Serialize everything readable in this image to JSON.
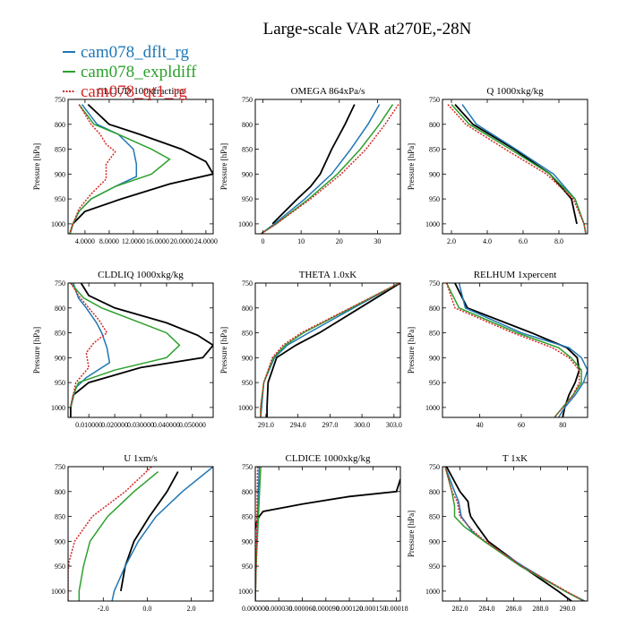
{
  "title": "Large-scale VAR at270E,-28N",
  "legend": [
    {
      "name": "cam078_dflt_rg",
      "color": "#1f77b4",
      "dash": false
    },
    {
      "name": "cam078_expldiff",
      "color": "#2ca02c",
      "dash": false
    },
    {
      "name": "cam078_qt1_rg",
      "color": "#d62728",
      "dash": true
    }
  ],
  "series_styles": [
    {
      "color": "#000000",
      "dash": false
    },
    {
      "color": "#1f77b4",
      "dash": false
    },
    {
      "color": "#2ca02c",
      "dash": false
    },
    {
      "color": "#d62728",
      "dash": true
    }
  ],
  "chart_data": [
    {
      "type": "line",
      "title": "CLOUD 100xfraction",
      "ylabel": "Pressure [hPa]",
      "xlim": [
        1.2,
        25.2
      ],
      "ylim": [
        1020,
        750
      ],
      "xticks": [
        4,
        8,
        12,
        16,
        20,
        24
      ],
      "xtick_labels": [
        "4.0000",
        "8.0000",
        "12.0000",
        "16.0000",
        "20.0000",
        "24.0000"
      ],
      "yticks": [
        750,
        800,
        850,
        900,
        950,
        1000
      ],
      "series": [
        {
          "p": [
            760,
            800,
            820,
            850,
            875,
            900,
            920,
            950,
            975,
            1000,
            1020
          ],
          "x": [
            4.5,
            8,
            13,
            20,
            24,
            25.2,
            18,
            10,
            4,
            2,
            1.5
          ]
        },
        {
          "p": [
            760,
            800,
            820,
            850,
            880,
            905,
            925,
            950,
            975,
            1000,
            1020
          ],
          "x": [
            3.5,
            6,
            9.5,
            12,
            12.5,
            12.5,
            9,
            5,
            3,
            2,
            1.5
          ]
        },
        {
          "p": [
            760,
            800,
            820,
            850,
            870,
            900,
            925,
            950,
            975,
            1000,
            1020
          ],
          "x": [
            3,
            5.5,
            9.5,
            15,
            18,
            15,
            9,
            5,
            3,
            2,
            1.5
          ]
        },
        {
          "p": [
            760,
            800,
            820,
            840,
            855,
            880,
            910,
            940,
            970,
            1000,
            1020
          ],
          "x": [
            3,
            5,
            6.5,
            7.5,
            9,
            7.5,
            7.5,
            5,
            3,
            2,
            1.5
          ]
        }
      ]
    },
    {
      "type": "line",
      "title": "OMEGA  864xPa/s",
      "ylabel": "Pressure [hPa]",
      "xlim": [
        -2,
        36
      ],
      "ylim": [
        1020,
        750
      ],
      "xticks": [
        0,
        10,
        20,
        30
      ],
      "xtick_labels": [
        "0",
        "10",
        "20",
        "30"
      ],
      "yticks": [
        750,
        800,
        850,
        900,
        950,
        1000
      ],
      "series": [
        {
          "p": [
            760,
            800,
            850,
            900,
            925,
            950,
            1000
          ],
          "x": [
            24,
            21.5,
            18,
            15,
            12.5,
            9,
            2.5
          ]
        },
        {
          "p": [
            760,
            800,
            850,
            900,
            950,
            1000,
            1020
          ],
          "x": [
            30.5,
            27.5,
            23,
            18,
            11,
            3,
            -0.5
          ]
        },
        {
          "p": [
            760,
            800,
            850,
            900,
            950,
            1000,
            1020
          ],
          "x": [
            34,
            30.5,
            25.5,
            19.5,
            12,
            3.5,
            -0.5
          ]
        },
        {
          "p": [
            760,
            800,
            850,
            900,
            950,
            1000,
            1020
          ],
          "x": [
            35.5,
            32,
            27,
            20.5,
            12.5,
            3.5,
            -0.5
          ]
        }
      ]
    },
    {
      "type": "line",
      "title": "Q  1000xkg/kg",
      "ylabel": "Pressure [hPa]",
      "xlim": [
        1.5,
        9.6
      ],
      "ylim": [
        1020,
        750
      ],
      "xticks": [
        2,
        4,
        6,
        8
      ],
      "xtick_labels": [
        "2.0",
        "4.0",
        "6.0",
        "8.0"
      ],
      "yticks": [
        750,
        800,
        850,
        900,
        950,
        1000
      ],
      "series": [
        {
          "p": [
            760,
            800,
            850,
            900,
            950,
            1000
          ],
          "x": [
            2.2,
            3.2,
            5.5,
            7.5,
            8.7,
            9.0
          ]
        },
        {
          "p": [
            760,
            800,
            850,
            900,
            950,
            1000,
            1020
          ],
          "x": [
            2.6,
            3.4,
            5.6,
            7.7,
            8.9,
            9.4,
            9.5
          ]
        },
        {
          "p": [
            760,
            800,
            850,
            900,
            950,
            1000,
            1020
          ],
          "x": [
            2.0,
            3.0,
            5.3,
            7.5,
            8.9,
            9.4,
            9.5
          ]
        },
        {
          "p": [
            760,
            800,
            850,
            900,
            950,
            1000,
            1020
          ],
          "x": [
            1.8,
            2.8,
            5.0,
            7.3,
            8.8,
            9.4,
            9.5
          ]
        }
      ]
    },
    {
      "type": "line",
      "title": "CLDLIQ  1000xkg/kg",
      "ylabel": "Pressure [hPa]",
      "xlim": [
        0.002,
        0.058
      ],
      "ylim": [
        1020,
        750
      ],
      "xticks": [
        0.01,
        0.02,
        0.03,
        0.04,
        0.05
      ],
      "xtick_labels": [
        "0.010000",
        "0.020000",
        "0.030000",
        "0.040000",
        "0.050000"
      ],
      "yticks": [
        750,
        800,
        850,
        900,
        950,
        1000
      ],
      "series": [
        {
          "p": [
            750,
            775,
            800,
            830,
            855,
            875,
            900,
            920,
            950,
            975,
            1000,
            1020
          ],
          "x": [
            0.007,
            0.01,
            0.02,
            0.04,
            0.052,
            0.058,
            0.054,
            0.03,
            0.01,
            0.004,
            0.003,
            0.003
          ]
        },
        {
          "p": [
            750,
            780,
            800,
            830,
            850,
            880,
            910,
            940,
            960,
            980,
            1000
          ],
          "x": [
            0.004,
            0.006,
            0.009,
            0.013,
            0.015,
            0.017,
            0.018,
            0.009,
            0.005,
            0.004,
            0.003
          ]
        },
        {
          "p": [
            750,
            780,
            800,
            830,
            850,
            875,
            900,
            925,
            950,
            975,
            1000
          ],
          "x": [
            0.003,
            0.008,
            0.015,
            0.03,
            0.04,
            0.045,
            0.04,
            0.02,
            0.006,
            0.004,
            0.003
          ]
        },
        {
          "p": [
            750,
            775,
            800,
            825,
            850,
            870,
            890,
            920,
            950,
            975,
            1000
          ],
          "x": [
            0.003,
            0.006,
            0.01,
            0.014,
            0.017,
            0.012,
            0.009,
            0.01,
            0.005,
            0.004,
            0.003
          ]
        }
      ]
    },
    {
      "type": "line",
      "title": "THETA  1.0xK",
      "ylabel": "Pressure [hPa]",
      "xlim": [
        290,
        303.6
      ],
      "ylim": [
        1020,
        750
      ],
      "xticks": [
        291,
        294,
        297,
        300,
        303
      ],
      "xtick_labels": [
        "291.0",
        "294.0",
        "297.0",
        "300.0",
        "303.0"
      ],
      "yticks": [
        750,
        800,
        850,
        900,
        950,
        1000
      ],
      "series": [
        {
          "p": [
            750,
            800,
            850,
            875,
            900,
            950,
            1000,
            1020
          ],
          "x": [
            303.6,
            299.8,
            296.0,
            293.8,
            292.0,
            291.2,
            291.1,
            291.1
          ]
        },
        {
          "p": [
            750,
            800,
            850,
            875,
            900,
            950,
            1000,
            1020
          ],
          "x": [
            303.5,
            299.2,
            295.0,
            293.0,
            291.8,
            290.8,
            290.6,
            290.5
          ]
        },
        {
          "p": [
            750,
            800,
            850,
            875,
            900,
            950,
            1000,
            1020
          ],
          "x": [
            303.5,
            299.0,
            294.5,
            292.8,
            291.7,
            290.8,
            290.5,
            290.5
          ]
        },
        {
          "p": [
            750,
            800,
            850,
            875,
            900,
            950,
            1000,
            1020
          ],
          "x": [
            303.5,
            298.9,
            294.3,
            292.6,
            291.6,
            290.8,
            290.5,
            290.5
          ]
        }
      ]
    },
    {
      "type": "line",
      "title": "RELHUM  1xpercent",
      "ylabel": "Pressure [hPa]",
      "xlim": [
        22,
        92
      ],
      "ylim": [
        1020,
        750
      ],
      "xticks": [
        40,
        60,
        80
      ],
      "xtick_labels": [
        "40",
        "60",
        "80"
      ],
      "yticks": [
        750,
        800,
        850,
        900,
        950,
        1000
      ],
      "series": [
        {
          "p": [
            750,
            800,
            850,
            880,
            900,
            925,
            950,
            975,
            1000,
            1020
          ],
          "x": [
            28,
            34,
            65,
            82,
            87,
            88,
            86,
            83,
            81,
            80
          ]
        },
        {
          "p": [
            750,
            800,
            850,
            880,
            900,
            925,
            950,
            975,
            1000,
            1020
          ],
          "x": [
            30,
            33,
            60,
            83,
            89,
            92,
            90,
            86,
            81,
            78
          ]
        },
        {
          "p": [
            750,
            800,
            850,
            880,
            900,
            925,
            950,
            975,
            1000,
            1020
          ],
          "x": [
            24,
            30,
            58,
            78,
            84,
            89,
            89,
            85,
            80,
            76
          ]
        },
        {
          "p": [
            750,
            800,
            850,
            880,
            900,
            925,
            950,
            975,
            1000,
            1020
          ],
          "x": [
            24,
            28,
            56,
            75,
            83,
            88,
            88,
            85,
            80,
            76
          ]
        }
      ]
    },
    {
      "type": "line",
      "title": "U  1xm/s",
      "ylabel": "",
      "xlim": [
        -3.6,
        3.0
      ],
      "ylim": [
        1020,
        750
      ],
      "xticks": [
        -2,
        0,
        2
      ],
      "xtick_labels": [
        "-2.0",
        "0.0",
        "2.0"
      ],
      "yticks": [
        750,
        800,
        850,
        900,
        950,
        1000
      ],
      "series": [
        {
          "p": [
            760,
            800,
            850,
            900,
            950,
            1000
          ],
          "x": [
            1.4,
            0.9,
            0.1,
            -0.6,
            -1.0,
            -1.2
          ]
        },
        {
          "p": [
            750,
            800,
            850,
            900,
            950,
            1000,
            1020
          ],
          "x": [
            3.0,
            1.6,
            0.4,
            -0.4,
            -1.0,
            -1.5,
            -1.6
          ]
        },
        {
          "p": [
            760,
            800,
            850,
            900,
            950,
            1000,
            1020
          ],
          "x": [
            0.5,
            -0.6,
            -1.8,
            -2.6,
            -2.9,
            -3.1,
            -3.1
          ]
        },
        {
          "p": [
            750,
            800,
            850,
            900,
            940,
            960,
            1000,
            1020
          ],
          "x": [
            0.2,
            -1.0,
            -2.5,
            -3.3,
            -3.55,
            -3.6,
            -3.6,
            -3.6
          ]
        }
      ]
    },
    {
      "type": "line",
      "title": "CLDICE  1000xkg/kg",
      "ylabel": "",
      "xlim": [
        0,
        0.000185
      ],
      "ylim": [
        1020,
        750
      ],
      "xticks": [
        0,
        3e-05,
        6e-05,
        9e-05,
        0.00012,
        0.00015,
        0.00018
      ],
      "xtick_labels": [
        "0.000000",
        "0.000030",
        "0.000060",
        "0.000090",
        "0.000120",
        "0.000150",
        "0.00018"
      ],
      "yticks": [
        750,
        800,
        850,
        900,
        950,
        1000
      ],
      "series": [
        {
          "p": [
            775,
            800,
            810,
            825,
            840,
            850,
            860,
            875
          ],
          "x": [
            0.000185,
            0.00018,
            0.00012,
            6e-05,
            1e-05,
            5e-06,
            2e-06,
            0.0
          ]
        },
        {
          "p": [
            750,
            850,
            950,
            1020
          ],
          "x": [
            5e-06,
            3e-06,
            1e-06,
            0.0
          ]
        },
        {
          "p": [
            750,
            850,
            950,
            1020
          ],
          "x": [
            7e-06,
            4e-06,
            1e-06,
            0.0
          ]
        },
        {
          "p": [
            750,
            850,
            950,
            1020
          ],
          "x": [
            3e-06,
            2e-06,
            1e-06,
            0.0
          ]
        }
      ]
    },
    {
      "type": "line",
      "title": "T  1xK",
      "ylabel": "Pressure [hPa]",
      "xlim": [
        280.7,
        291.5
      ],
      "ylim": [
        1020,
        750
      ],
      "xticks": [
        282,
        284,
        286,
        288,
        290
      ],
      "xtick_labels": [
        "282.0",
        "284.0",
        "286.0",
        "288.0",
        "290.0"
      ],
      "yticks": [
        750,
        800,
        850,
        900,
        950,
        1000
      ],
      "series": [
        {
          "p": [
            750,
            800,
            820,
            840,
            850,
            870,
            900,
            950,
            1000,
            1020
          ],
          "x": [
            281.0,
            282.0,
            282.6,
            282.7,
            282.8,
            283.3,
            284.1,
            286.6,
            289.3,
            290.3
          ]
        },
        {
          "p": [
            750,
            800,
            820,
            850,
            880,
            900,
            950,
            1000,
            1020
          ],
          "x": [
            280.9,
            281.6,
            281.9,
            282.1,
            282.9,
            283.8,
            286.7,
            289.8,
            291.3
          ]
        },
        {
          "p": [
            750,
            800,
            830,
            850,
            870,
            900,
            950,
            1000,
            1020
          ],
          "x": [
            280.9,
            281.4,
            281.6,
            281.6,
            282.3,
            283.8,
            286.5,
            289.8,
            291.2
          ]
        },
        {
          "p": [
            750,
            800,
            820,
            850,
            880,
            900,
            950,
            1000,
            1020
          ],
          "x": [
            280.9,
            281.4,
            281.8,
            282.0,
            283.0,
            283.9,
            286.6,
            289.9,
            291.2
          ]
        }
      ]
    }
  ]
}
